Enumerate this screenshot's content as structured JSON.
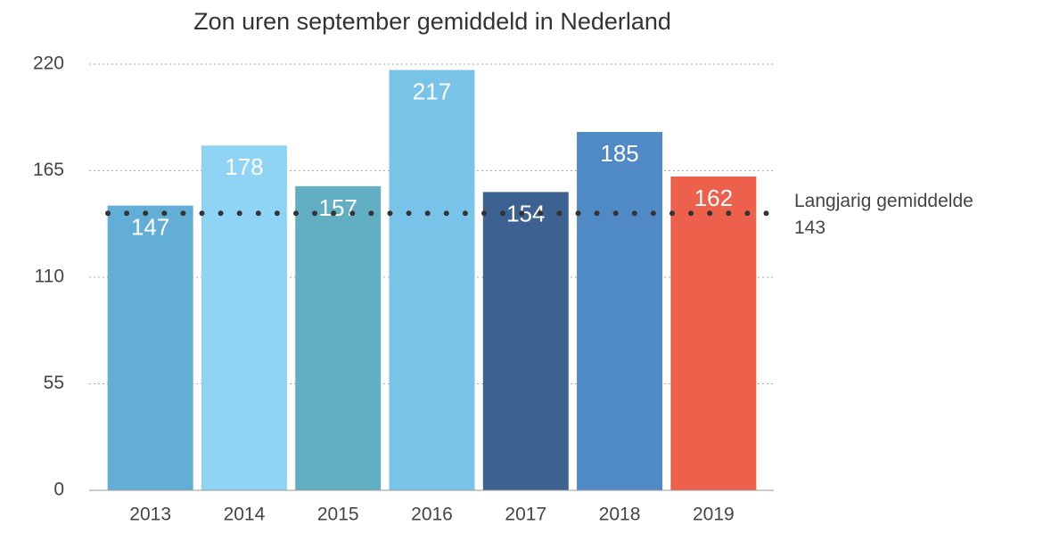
{
  "chart_data": {
    "type": "bar",
    "title": "Zon uren september gemiddeld in Nederland",
    "categories": [
      "2013",
      "2014",
      "2015",
      "2016",
      "2017",
      "2018",
      "2019"
    ],
    "values": [
      147,
      178,
      157,
      217,
      154,
      185,
      162
    ],
    "colors": [
      "#62aed6",
      "#8fd3f5",
      "#62afc4",
      "#7ac3e8",
      "#3d6190",
      "#4f8ac6",
      "#ec604c"
    ],
    "ylim": [
      0,
      220
    ],
    "yticks": [
      0,
      55,
      110,
      165,
      220
    ],
    "grid": true,
    "reference_line": {
      "label": "Langjarig gemiddelde",
      "value": 143
    }
  }
}
